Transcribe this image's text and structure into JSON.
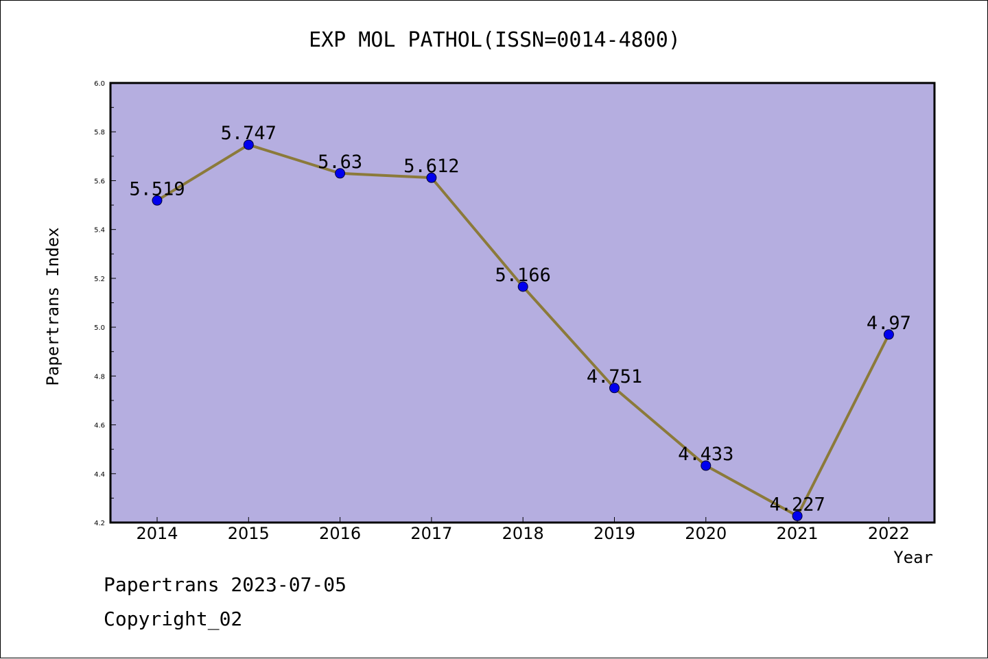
{
  "chart_data": {
    "type": "line",
    "title": "EXP MOL PATHOL(ISSN=0014-4800)",
    "xlabel": "Year",
    "ylabel": "Papertrans Index",
    "categories": [
      "2014",
      "2015",
      "2016",
      "2017",
      "2018",
      "2019",
      "2020",
      "2021",
      "2022"
    ],
    "values": [
      5.519,
      5.747,
      5.63,
      5.612,
      5.166,
      4.751,
      4.433,
      4.227,
      4.97
    ],
    "data_labels": [
      "5.519",
      "5.747",
      "5.63",
      "5.612",
      "5.166",
      "4.751",
      "4.433",
      "4.227",
      "4.97"
    ],
    "ylim": [
      4.2,
      6.0
    ],
    "yticks": [
      "4.2",
      "4.4",
      "4.6",
      "4.8",
      "5.0",
      "5.2",
      "5.4",
      "5.6",
      "5.8",
      "6.0"
    ],
    "grid": false,
    "legend": "none",
    "colors": {
      "plot_background": "#b5aee0",
      "line": "#8b7a3a",
      "marker": "#0000ee"
    }
  },
  "footer": {
    "line1": "Papertrans 2023-07-05",
    "line2": "Copyright_02"
  }
}
